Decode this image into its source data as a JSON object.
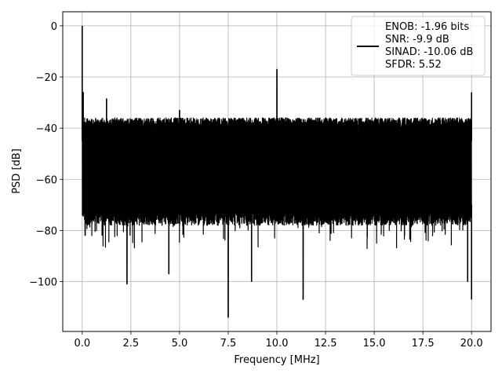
{
  "chart_data": {
    "type": "line",
    "xlabel": "Frequency [MHz]",
    "ylabel": "PSD [dB]",
    "xlim": [
      -1.0,
      21.0
    ],
    "ylim": [
      -119.5,
      5.5
    ],
    "x_ticks": [
      0.0,
      2.5,
      5.0,
      7.5,
      10.0,
      12.5,
      15.0,
      17.5,
      20.0
    ],
    "x_tick_labels": [
      "0.0",
      "2.5",
      "5.0",
      "7.5",
      "10.0",
      "12.5",
      "15.0",
      "17.5",
      "20.0"
    ],
    "y_ticks": [
      0,
      -20,
      -40,
      -60,
      -80,
      -100
    ],
    "y_tick_labels": [
      "0",
      "−20",
      "−40",
      "−60",
      "−80",
      "−100"
    ],
    "grid": true,
    "legend_position": "top-right",
    "series": [
      {
        "name": "ENOB: -1.96 bits\nSNR: -9.9 dB\nSINAD: -10.06 dB\nSFDR: 5.52",
        "color": "#000000",
        "noise_band_db": {
          "typical_max": -37,
          "typical_min": -78
        },
        "peaks": [
          {
            "x": 0.0,
            "y": 0
          },
          {
            "x": 0.05,
            "y": -26
          },
          {
            "x": 1.25,
            "y": -28.5
          },
          {
            "x": 5.0,
            "y": -33
          },
          {
            "x": 10.0,
            "y": -17
          },
          {
            "x": 20.0,
            "y": -26
          }
        ],
        "troughs": [
          {
            "x": 0.15,
            "y": -82
          },
          {
            "x": 2.3,
            "y": -101
          },
          {
            "x": 4.45,
            "y": -97
          },
          {
            "x": 7.5,
            "y": -114
          },
          {
            "x": 8.7,
            "y": -100
          },
          {
            "x": 11.35,
            "y": -107
          },
          {
            "x": 19.8,
            "y": -100
          },
          {
            "x": 20.0,
            "y": -107
          }
        ]
      }
    ]
  },
  "legend": {
    "lines": [
      "ENOB: -1.96 bits",
      "SNR: -9.9 dB",
      "SINAD: -10.06 dB",
      "SFDR: 5.52"
    ],
    "line_color": "#000000"
  }
}
